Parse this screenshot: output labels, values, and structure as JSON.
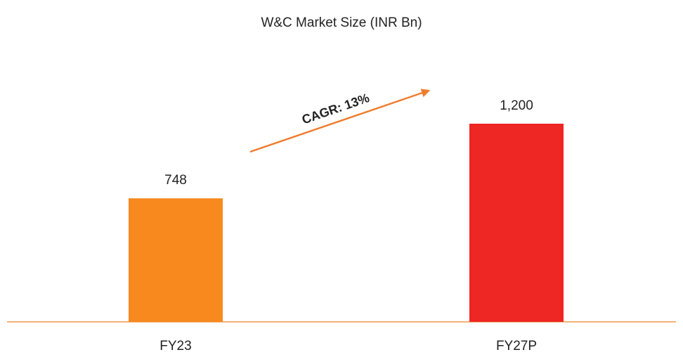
{
  "chart_data": {
    "type": "bar",
    "title": "W&C Market Size (INR Bn)",
    "categories": [
      "FY23",
      "FY27P"
    ],
    "values": [
      748,
      1200
    ],
    "value_labels": [
      "748",
      "1,200"
    ],
    "colors": [
      "#f7891f",
      "#ee2624"
    ],
    "ylim": [
      0,
      1400
    ],
    "annotation": "CAGR: 13%"
  }
}
